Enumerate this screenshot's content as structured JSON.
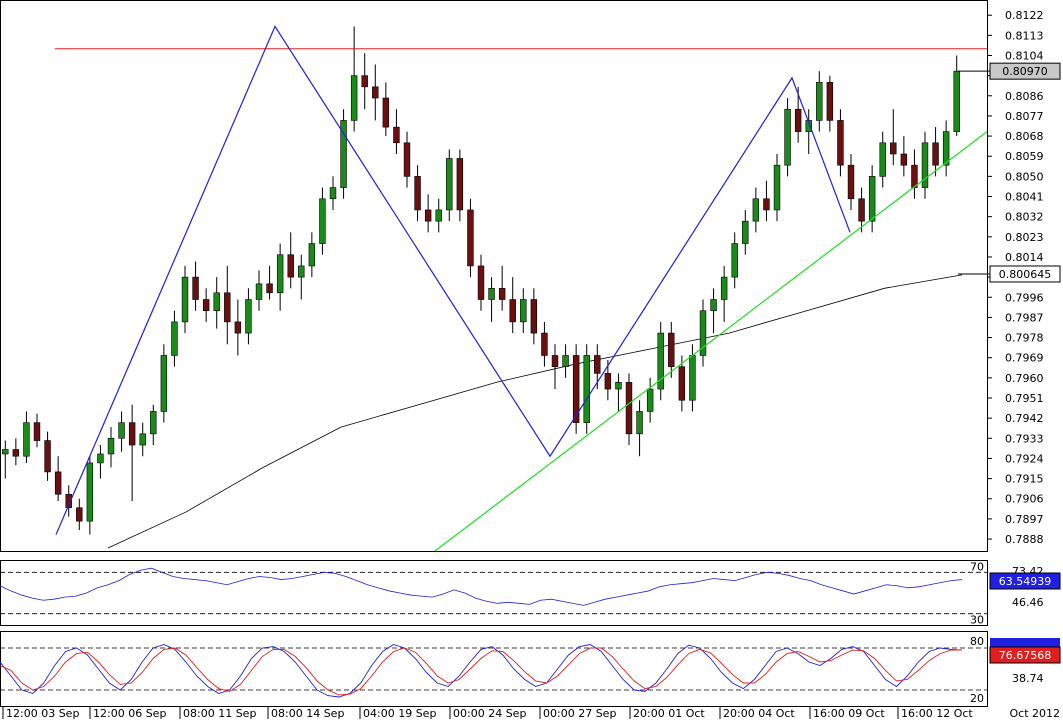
{
  "chart_data": [
    {
      "type": "candlestick",
      "panel": "price",
      "y_ticks": [
        "0.8122",
        "0.8113",
        "0.8104",
        "0.8095",
        "0.8086",
        "0.8077",
        "0.8068",
        "0.8059",
        "0.8050",
        "0.8041",
        "0.8032",
        "0.8023",
        "0.8014",
        "0.8005",
        "0.7996",
        "0.7987",
        "0.7978",
        "0.7969",
        "0.7960",
        "0.7951",
        "0.7942",
        "0.7933",
        "0.7924",
        "0.7915",
        "0.7906",
        "0.7897",
        "0.7888"
      ],
      "ylim": [
        0.7884,
        0.8127
      ],
      "current_price_label": "0.80970",
      "current_price": 0.8097,
      "ma_label": "0.800645",
      "ma_value": 0.80064,
      "resistance_level": 0.8107,
      "colors": {
        "up": "#1a8a1a",
        "down": "#6b1010",
        "wave": "#2020e0",
        "trendline": "#22dd22",
        "resistance": "#e02020",
        "ma": "#000000"
      },
      "wave_points": [
        {
          "t": "03 Sep",
          "y": 0.789
        },
        {
          "t": "10 Sep",
          "y": 0.8117
        },
        {
          "t": "24 Sep",
          "y": 0.7925
        },
        {
          "t": "05 Oct",
          "y": 0.8094
        },
        {
          "t": "09 Oct",
          "y": 0.8025
        }
      ],
      "candles": [
        [
          0.7926,
          0.7932,
          0.7915,
          0.7928
        ],
        [
          0.7928,
          0.7933,
          0.7921,
          0.7925
        ],
        [
          0.7925,
          0.7945,
          0.7922,
          0.794
        ],
        [
          0.794,
          0.7944,
          0.7929,
          0.7932
        ],
        [
          0.7932,
          0.7936,
          0.7914,
          0.7918
        ],
        [
          0.7918,
          0.7925,
          0.7905,
          0.7908
        ],
        [
          0.7908,
          0.7912,
          0.7898,
          0.7902
        ],
        [
          0.7902,
          0.7906,
          0.7892,
          0.7896
        ],
        [
          0.7896,
          0.7925,
          0.789,
          0.7922
        ],
        [
          0.7922,
          0.793,
          0.7915,
          0.7926
        ],
        [
          0.7926,
          0.7938,
          0.792,
          0.7933
        ],
        [
          0.7933,
          0.7945,
          0.7927,
          0.794
        ],
        [
          0.794,
          0.7948,
          0.7905,
          0.793
        ],
        [
          0.793,
          0.794,
          0.7925,
          0.7935
        ],
        [
          0.7935,
          0.7948,
          0.793,
          0.7945
        ],
        [
          0.7945,
          0.7975,
          0.794,
          0.797
        ],
        [
          0.797,
          0.799,
          0.7965,
          0.7985
        ],
        [
          0.7985,
          0.801,
          0.798,
          0.8005
        ],
        [
          0.8005,
          0.8012,
          0.799,
          0.7995
        ],
        [
          0.7995,
          0.8,
          0.7985,
          0.799
        ],
        [
          0.799,
          0.8005,
          0.7982,
          0.7998
        ],
        [
          0.7998,
          0.801,
          0.7975,
          0.7985
        ],
        [
          0.7985,
          0.7995,
          0.797,
          0.798
        ],
        [
          0.798,
          0.8,
          0.7975,
          0.7995
        ],
        [
          0.7995,
          0.8008,
          0.799,
          0.8002
        ],
        [
          0.8002,
          0.801,
          0.7995,
          0.7998
        ],
        [
          0.7998,
          0.802,
          0.799,
          0.8015
        ],
        [
          0.8015,
          0.8025,
          0.8,
          0.8005
        ],
        [
          0.8005,
          0.8015,
          0.7995,
          0.801
        ],
        [
          0.801,
          0.8025,
          0.8005,
          0.802
        ],
        [
          0.802,
          0.8045,
          0.8015,
          0.804
        ],
        [
          0.804,
          0.805,
          0.8035,
          0.8045
        ],
        [
          0.8045,
          0.808,
          0.804,
          0.8075
        ],
        [
          0.8075,
          0.8117,
          0.807,
          0.8095
        ],
        [
          0.8095,
          0.8105,
          0.808,
          0.809
        ],
        [
          0.809,
          0.81,
          0.8075,
          0.8085
        ],
        [
          0.8085,
          0.8092,
          0.8068,
          0.8072
        ],
        [
          0.8072,
          0.808,
          0.806,
          0.8065
        ],
        [
          0.8065,
          0.807,
          0.8045,
          0.805
        ],
        [
          0.805,
          0.8055,
          0.803,
          0.8035
        ],
        [
          0.8035,
          0.8042,
          0.8025,
          0.803
        ],
        [
          0.803,
          0.804,
          0.8025,
          0.8035
        ],
        [
          0.8035,
          0.8062,
          0.803,
          0.8058
        ],
        [
          0.8058,
          0.8062,
          0.803,
          0.8035
        ],
        [
          0.8035,
          0.804,
          0.8005,
          0.801
        ],
        [
          0.801,
          0.8015,
          0.799,
          0.7995
        ],
        [
          0.7995,
          0.8005,
          0.7985,
          0.8
        ],
        [
          0.8,
          0.801,
          0.799,
          0.7995
        ],
        [
          0.7995,
          0.8005,
          0.798,
          0.7985
        ],
        [
          0.7985,
          0.8,
          0.798,
          0.7995
        ],
        [
          0.7995,
          0.8,
          0.7975,
          0.798
        ],
        [
          0.798,
          0.7985,
          0.7965,
          0.797
        ],
        [
          0.797,
          0.7975,
          0.7955,
          0.7965
        ],
        [
          0.7965,
          0.7975,
          0.796,
          0.797
        ],
        [
          0.797,
          0.7975,
          0.7935,
          0.794
        ],
        [
          0.794,
          0.7975,
          0.7935,
          0.797
        ],
        [
          0.797,
          0.7975,
          0.7955,
          0.7962
        ],
        [
          0.7962,
          0.7968,
          0.795,
          0.7955
        ],
        [
          0.7955,
          0.7962,
          0.7945,
          0.7958
        ],
        [
          0.7958,
          0.7962,
          0.793,
          0.7935
        ],
        [
          0.7935,
          0.795,
          0.7925,
          0.7945
        ],
        [
          0.7945,
          0.796,
          0.794,
          0.7955
        ],
        [
          0.7955,
          0.7985,
          0.795,
          0.798
        ],
        [
          0.798,
          0.7985,
          0.796,
          0.7965
        ],
        [
          0.7965,
          0.797,
          0.7945,
          0.795
        ],
        [
          0.795,
          0.7975,
          0.7945,
          0.797
        ],
        [
          0.797,
          0.7995,
          0.7965,
          0.799
        ],
        [
          0.799,
          0.8,
          0.798,
          0.7995
        ],
        [
          0.7995,
          0.801,
          0.7985,
          0.8005
        ],
        [
          0.8005,
          0.8025,
          0.8,
          0.802
        ],
        [
          0.802,
          0.8035,
          0.8015,
          0.803
        ],
        [
          0.803,
          0.8045,
          0.8025,
          0.804
        ],
        [
          0.804,
          0.8048,
          0.803,
          0.8035
        ],
        [
          0.8035,
          0.806,
          0.803,
          0.8055
        ],
        [
          0.8055,
          0.8085,
          0.805,
          0.808
        ],
        [
          0.808,
          0.809,
          0.8065,
          0.807
        ],
        [
          0.807,
          0.808,
          0.806,
          0.8075
        ],
        [
          0.8075,
          0.8097,
          0.807,
          0.8092
        ],
        [
          0.8092,
          0.8095,
          0.807,
          0.8075
        ],
        [
          0.8075,
          0.808,
          0.805,
          0.8055
        ],
        [
          0.8055,
          0.806,
          0.8035,
          0.804
        ],
        [
          0.804,
          0.8045,
          0.8025,
          0.803
        ],
        [
          0.803,
          0.8055,
          0.8025,
          0.805
        ],
        [
          0.805,
          0.807,
          0.8045,
          0.8065
        ],
        [
          0.8065,
          0.808,
          0.8055,
          0.806
        ],
        [
          0.806,
          0.8068,
          0.805,
          0.8055
        ],
        [
          0.8055,
          0.8062,
          0.804,
          0.8045
        ],
        [
          0.8045,
          0.807,
          0.804,
          0.8065
        ],
        [
          0.8065,
          0.8072,
          0.805,
          0.8055
        ],
        [
          0.8055,
          0.8075,
          0.805,
          0.807
        ],
        [
          0.807,
          0.8104,
          0.8068,
          0.8097
        ]
      ],
      "ma_points": [
        0.7884,
        0.79,
        0.792,
        0.7938,
        0.7948,
        0.7958,
        0.7966,
        0.7973,
        0.798,
        0.799,
        0.8,
        0.8006
      ],
      "x_ticks": [
        "12:00 03 Sep",
        "12:00 06 Sep",
        "08:00 11 Sep",
        "08:00 14 Sep",
        "04:00 19 Sep",
        "00:00 24 Sep",
        "00:00 27 Sep",
        "20:00 01 Oct",
        "20:00 04 Oct",
        "16:00 09 Oct",
        "16:00 12 Oct"
      ],
      "x_axis_end_label": "Oct 2012"
    },
    {
      "type": "line",
      "panel": "rsi",
      "levels": [
        70,
        30
      ],
      "level_labels": [
        "70",
        "30"
      ],
      "right_labels": [
        "73.42",
        "46.46"
      ],
      "current_label": "63.54939",
      "current_value": 63.55,
      "ylim": [
        20,
        80
      ],
      "color": "#2020e0",
      "values": [
        57,
        52,
        48,
        45,
        43,
        44,
        46,
        47,
        50,
        55,
        58,
        62,
        68,
        72,
        74,
        70,
        66,
        64,
        63,
        62,
        60,
        58,
        61,
        64,
        66,
        65,
        63,
        64,
        66,
        68,
        70,
        69,
        66,
        62,
        58,
        55,
        52,
        50,
        48,
        47,
        46,
        49,
        53,
        50,
        45,
        42,
        40,
        41,
        40,
        39,
        43,
        44,
        42,
        40,
        38,
        41,
        44,
        46,
        48,
        50,
        52,
        56,
        58,
        59,
        60,
        62,
        64,
        63,
        62,
        65,
        68,
        70,
        69,
        67,
        64,
        62,
        58,
        55,
        52,
        49,
        52,
        55,
        58,
        57,
        55,
        56,
        58,
        60,
        62,
        63
      ]
    },
    {
      "type": "line",
      "panel": "stochastic",
      "levels": [
        80,
        20
      ],
      "level_labels": [
        "80",
        "20"
      ],
      "right_labels": [
        "38.74"
      ],
      "current_label": "76.67568",
      "current_value": 76.68,
      "ylim": [
        0,
        100
      ],
      "series": [
        {
          "color": "#2020e0",
          "values": [
            60,
            40,
            20,
            15,
            30,
            55,
            75,
            80,
            70,
            50,
            30,
            20,
            35,
            60,
            80,
            85,
            78,
            60,
            40,
            25,
            15,
            20,
            40,
            65,
            80,
            82,
            75,
            60,
            40,
            20,
            12,
            10,
            15,
            30,
            55,
            75,
            85,
            80,
            65,
            45,
            30,
            25,
            40,
            60,
            78,
            82,
            70,
            50,
            35,
            25,
            30,
            50,
            70,
            82,
            85,
            75,
            55,
            35,
            20,
            18,
            30,
            50,
            72,
            84,
            80,
            65,
            45,
            30,
            22,
            35,
            55,
            75,
            80,
            72,
            60,
            55,
            65,
            78,
            82,
            75,
            55,
            35,
            25,
            40,
            60,
            75,
            80,
            78,
            77
          ]
        },
        {
          "color": "#e02020",
          "values": [
            55,
            48,
            30,
            20,
            25,
            40,
            60,
            72,
            74,
            60,
            42,
            28,
            30,
            45,
            65,
            78,
            80,
            70,
            52,
            35,
            22,
            18,
            28,
            48,
            68,
            78,
            78,
            68,
            52,
            33,
            20,
            13,
            14,
            22,
            40,
            60,
            75,
            80,
            74,
            58,
            40,
            30,
            35,
            50,
            65,
            76,
            75,
            62,
            46,
            33,
            30,
            40,
            56,
            72,
            80,
            80,
            68,
            50,
            33,
            22,
            25,
            38,
            56,
            72,
            78,
            73,
            58,
            42,
            30,
            30,
            42,
            60,
            72,
            75,
            68,
            60,
            62,
            70,
            77,
            76,
            65,
            48,
            33,
            35,
            48,
            62,
            72,
            77,
            77
          ]
        }
      ]
    }
  ]
}
